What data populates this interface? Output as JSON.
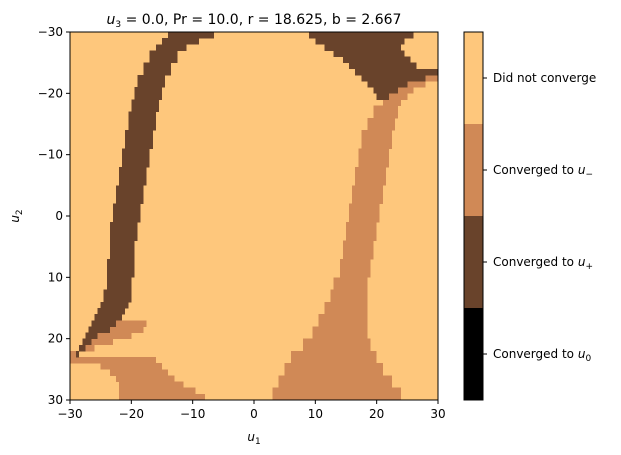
{
  "chart_data": {
    "type": "heatmap",
    "title": {
      "lead": "u",
      "lead_sub": "3",
      "rest": " = 0.0, Pr = 10.0, r = 18.625, b = 2.667"
    },
    "xlabel": {
      "base": "u",
      "sub": "1"
    },
    "ylabel": {
      "base": "u",
      "sub": "2"
    },
    "xlim": [
      -30,
      30
    ],
    "ylim": [
      30,
      -30
    ],
    "y_axis_inverted": true,
    "xticks": [
      "−30",
      "−20",
      "−10",
      "0",
      "10",
      "20",
      "30"
    ],
    "xtick_values": [
      -30,
      -20,
      -10,
      0,
      10,
      20,
      30
    ],
    "yticks": [
      "−30",
      "−20",
      "−10",
      "0",
      "10",
      "20",
      "30"
    ],
    "ytick_values": [
      -30,
      -20,
      -10,
      0,
      10,
      20,
      30
    ],
    "grid_resolution": 60,
    "colors": {
      "did_not_converge": "#fec77c",
      "converged_u_minus": "#d08956",
      "converged_u_plus": "#69432b",
      "converged_u0": "#000000"
    },
    "colorbar": {
      "categories": [
        {
          "key": "did_not_converge",
          "label": "Did not converge",
          "base": "Did not converge",
          "sub": ""
        },
        {
          "key": "converged_u_minus",
          "label": "Converged to u_−",
          "base": "Converged to u",
          "sub": "−"
        },
        {
          "key": "converged_u_plus",
          "label": "Converged to u_+",
          "base": "Converged to u",
          "sub": "+"
        },
        {
          "key": "converged_u0",
          "label": "Converged to u_0",
          "base": "Converged to u",
          "sub": "0"
        }
      ]
    },
    "regions": {
      "background": "did_not_converge",
      "u_plus_basin": [
        {
          "u2_range": [
            -30,
            -29
          ],
          "u1_range": [
            -14.0,
            -6.5
          ]
        },
        {
          "u2_range": [
            -29,
            -28
          ],
          "u1_range": [
            -15.0,
            -9.0
          ]
        },
        {
          "u2_range": [
            -28,
            -27
          ],
          "u1_range": [
            -16.0,
            -11.0
          ]
        },
        {
          "u2_range": [
            -27,
            -25
          ],
          "u1_range": [
            -17.0,
            -12.5
          ]
        },
        {
          "u2_range": [
            -25,
            -23
          ],
          "u1_range": [
            -18.0,
            -13.5
          ]
        },
        {
          "u2_range": [
            -23,
            -21
          ],
          "u1_range": [
            -19.0,
            -14.5
          ]
        },
        {
          "u2_range": [
            -21,
            -19
          ],
          "u1_range": [
            -19.5,
            -15.0
          ]
        },
        {
          "u2_range": [
            -19,
            -17
          ],
          "u1_range": [
            -20.0,
            -15.5
          ]
        },
        {
          "u2_range": [
            -17,
            -14
          ],
          "u1_range": [
            -20.5,
            -16.0
          ]
        },
        {
          "u2_range": [
            -14,
            -11
          ],
          "u1_range": [
            -21.0,
            -16.5
          ]
        },
        {
          "u2_range": [
            -11,
            -8
          ],
          "u1_range": [
            -21.5,
            -17.0
          ]
        },
        {
          "u2_range": [
            -8,
            -5
          ],
          "u1_range": [
            -22.0,
            -17.5
          ]
        },
        {
          "u2_range": [
            -5,
            -2
          ],
          "u1_range": [
            -22.5,
            -18.0
          ]
        },
        {
          "u2_range": [
            -2,
            1
          ],
          "u1_range": [
            -23.0,
            -18.5
          ]
        },
        {
          "u2_range": [
            1,
            4
          ],
          "u1_range": [
            -23.5,
            -19.0
          ]
        },
        {
          "u2_range": [
            4,
            7
          ],
          "u1_range": [
            -23.5,
            -19.5
          ]
        },
        {
          "u2_range": [
            7,
            10
          ],
          "u1_range": [
            -24.0,
            -19.5
          ]
        },
        {
          "u2_range": [
            10,
            12
          ],
          "u1_range": [
            -24.0,
            -20.0
          ]
        },
        {
          "u2_range": [
            12,
            14
          ],
          "u1_range": [
            -24.5,
            -20.0
          ]
        },
        {
          "u2_range": [
            14,
            15
          ],
          "u1_range": [
            -25.0,
            -20.5
          ]
        },
        {
          "u2_range": [
            15,
            16
          ],
          "u1_range": [
            -25.5,
            -21.0
          ]
        },
        {
          "u2_range": [
            16,
            17
          ],
          "u1_range": [
            -26.0,
            -21.5
          ]
        },
        {
          "u2_range": [
            17,
            18
          ],
          "u1_range": [
            -26.5,
            -22.5
          ]
        },
        {
          "u2_range": [
            18,
            19
          ],
          "u1_range": [
            -27.0,
            -23.5
          ]
        },
        {
          "u2_range": [
            19,
            20
          ],
          "u1_range": [
            -27.5,
            -25.5
          ]
        },
        {
          "u2_range": [
            20,
            21
          ],
          "u1_range": [
            -28.0,
            -26.5
          ]
        },
        {
          "u2_range": [
            21,
            22
          ],
          "u1_range": [
            -28.5,
            -27.5
          ]
        },
        {
          "u2_range": [
            22,
            23
          ],
          "u1_range": [
            -29.0,
            -28.5
          ]
        },
        {
          "u2_range": [
            -30,
            -29
          ],
          "u1_range": [
            9.0,
            26.0
          ]
        },
        {
          "u2_range": [
            -29,
            -28
          ],
          "u1_range": [
            10.0,
            24.5
          ]
        },
        {
          "u2_range": [
            -28,
            -27
          ],
          "u1_range": [
            11.5,
            24.0
          ]
        },
        {
          "u2_range": [
            -27,
            -26
          ],
          "u1_range": [
            13.0,
            24.5
          ]
        },
        {
          "u2_range": [
            -26,
            -25
          ],
          "u1_range": [
            14.5,
            25.5
          ]
        },
        {
          "u2_range": [
            -25,
            -24
          ],
          "u1_range": [
            15.5,
            26.5
          ]
        },
        {
          "u2_range": [
            -24,
            -23
          ],
          "u1_range": [
            16.5,
            30.0
          ]
        },
        {
          "u2_range": [
            -23,
            -22
          ],
          "u1_range": [
            17.5,
            28.0
          ]
        },
        {
          "u2_range": [
            -22,
            -21
          ],
          "u1_range": [
            18.5,
            25.0
          ]
        },
        {
          "u2_range": [
            -21,
            -20
          ],
          "u1_range": [
            19.5,
            23.5
          ]
        },
        {
          "u2_range": [
            -20,
            -19
          ],
          "u1_range": [
            20.0,
            22.0
          ]
        }
      ],
      "u_minus_basin": [
        {
          "u2_range": [
            -23,
            -22
          ],
          "u1_range": [
            28.0,
            30.0
          ]
        },
        {
          "u2_range": [
            -22,
            -21
          ],
          "u1_range": [
            25.0,
            28.0
          ]
        },
        {
          "u2_range": [
            -21,
            -20
          ],
          "u1_range": [
            23.5,
            26.0
          ]
        },
        {
          "u2_range": [
            -20,
            -19
          ],
          "u1_range": [
            22.0,
            25.0
          ]
        },
        {
          "u2_range": [
            -19,
            -18
          ],
          "u1_range": [
            21.0,
            24.0
          ]
        },
        {
          "u2_range": [
            -18,
            -16
          ],
          "u1_range": [
            19.5,
            23.5
          ]
        },
        {
          "u2_range": [
            -16,
            -14
          ],
          "u1_range": [
            18.5,
            23.0
          ]
        },
        {
          "u2_range": [
            -14,
            -11
          ],
          "u1_range": [
            17.5,
            22.5
          ]
        },
        {
          "u2_range": [
            -11,
            -8
          ],
          "u1_range": [
            17.0,
            22.0
          ]
        },
        {
          "u2_range": [
            -8,
            -5
          ],
          "u1_range": [
            16.5,
            21.5
          ]
        },
        {
          "u2_range": [
            -5,
            -2
          ],
          "u1_range": [
            16.0,
            21.0
          ]
        },
        {
          "u2_range": [
            -2,
            1
          ],
          "u1_range": [
            15.5,
            20.5
          ]
        },
        {
          "u2_range": [
            1,
            4
          ],
          "u1_range": [
            15.0,
            20.0
          ]
        },
        {
          "u2_range": [
            4,
            7
          ],
          "u1_range": [
            14.5,
            19.5
          ]
        },
        {
          "u2_range": [
            7,
            10
          ],
          "u1_range": [
            14.0,
            19.0
          ]
        },
        {
          "u2_range": [
            10,
            12
          ],
          "u1_range": [
            13.0,
            18.5
          ]
        },
        {
          "u2_range": [
            12,
            14
          ],
          "u1_range": [
            12.5,
            18.5
          ]
        },
        {
          "u2_range": [
            14,
            16
          ],
          "u1_range": [
            11.5,
            18.5
          ]
        },
        {
          "u2_range": [
            16,
            18
          ],
          "u1_range": [
            10.5,
            18.5
          ]
        },
        {
          "u2_range": [
            18,
            20
          ],
          "u1_range": [
            9.5,
            18.5
          ]
        },
        {
          "u2_range": [
            20,
            22
          ],
          "u1_range": [
            8.0,
            19.0
          ]
        },
        {
          "u2_range": [
            22,
            24
          ],
          "u1_range": [
            6.0,
            20.0
          ]
        },
        {
          "u2_range": [
            24,
            26
          ],
          "u1_range": [
            5.0,
            21.0
          ]
        },
        {
          "u2_range": [
            26,
            28
          ],
          "u1_range": [
            4.0,
            22.5
          ]
        },
        {
          "u2_range": [
            28,
            30
          ],
          "u1_range": [
            3.0,
            24.0
          ]
        },
        {
          "u2_range": [
            22,
            23
          ],
          "u1_range": [
            -30.0,
            -29.0
          ]
        },
        {
          "u2_range": [
            21,
            22
          ],
          "u1_range": [
            -27.5,
            -26.0
          ]
        },
        {
          "u2_range": [
            20,
            21
          ],
          "u1_range": [
            -26.5,
            -23.0
          ]
        },
        {
          "u2_range": [
            19,
            20
          ],
          "u1_range": [
            -25.5,
            -20.0
          ]
        },
        {
          "u2_range": [
            18,
            19
          ],
          "u1_range": [
            -23.5,
            -18.0
          ]
        },
        {
          "u2_range": [
            17,
            18
          ],
          "u1_range": [
            -22.5,
            -17.5
          ]
        },
        {
          "u2_range": [
            23,
            24
          ],
          "u1_range": [
            -30.0,
            -16.0
          ]
        },
        {
          "u2_range": [
            24,
            25
          ],
          "u1_range": [
            -25.0,
            -15.0
          ]
        },
        {
          "u2_range": [
            25,
            26
          ],
          "u1_range": [
            -23.5,
            -14.0
          ]
        },
        {
          "u2_range": [
            26,
            27
          ],
          "u1_range": [
            -22.5,
            -13.0
          ]
        },
        {
          "u2_range": [
            27,
            28
          ],
          "u1_range": [
            -22.0,
            -11.5
          ]
        },
        {
          "u2_range": [
            28,
            29
          ],
          "u1_range": [
            -22.0,
            -9.5
          ]
        },
        {
          "u2_range": [
            29,
            30
          ],
          "u1_range": [
            -22.0,
            -8.0
          ]
        }
      ]
    }
  }
}
